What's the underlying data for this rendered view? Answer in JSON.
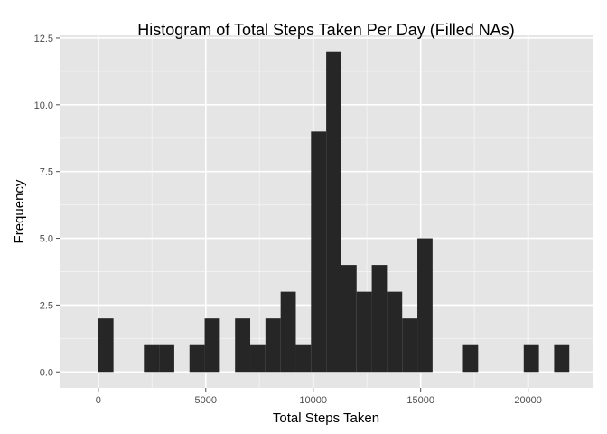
{
  "chart_data": {
    "type": "bar",
    "title": "Histogram of Total Steps Taken Per Day (Filled NAs)",
    "xlabel": "Total Steps Taken",
    "ylabel": "Frequency",
    "xlim": [
      -1800,
      23000
    ],
    "ylim": [
      -0.6,
      12.6
    ],
    "binwidth": 707,
    "bin_start": 0,
    "xticks": [
      0,
      5000,
      10000,
      15000,
      20000
    ],
    "xtick_labels": [
      "0",
      "5000",
      "10000",
      "15000",
      "20000"
    ],
    "yticks": [
      0,
      2.5,
      5,
      7.5,
      10,
      12.5
    ],
    "ytick_labels": [
      "0.0",
      "2.5",
      "5.0",
      "7.5",
      "10.0",
      "12.5"
    ],
    "values": [
      2,
      0,
      0,
      1,
      1,
      0,
      1,
      2,
      0,
      2,
      1,
      2,
      3,
      1,
      9,
      12,
      4,
      3,
      4,
      3,
      2,
      5,
      0,
      0,
      1,
      0,
      0,
      0,
      1,
      0,
      1
    ],
    "bar_color": "#262626",
    "panel_color": "#e5e5e5",
    "grid_color": "#ffffff",
    "grid": true,
    "legend": "none"
  }
}
